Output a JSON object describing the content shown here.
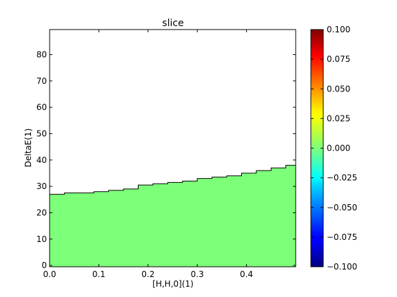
{
  "chart_data": {
    "type": "heatmap",
    "title": "slice",
    "xlabel": "[H,H,0](1)",
    "ylabel": "DeltaE(1)",
    "xlim": [
      0.0,
      0.5
    ],
    "ylim": [
      -0.5,
      89.5
    ],
    "x_ticks": [
      0.0,
      0.1,
      0.2,
      0.3,
      0.4
    ],
    "x_tick_labels": [
      "0.0",
      "0.1",
      "0.2",
      "0.3",
      "0.4"
    ],
    "y_ticks": [
      0,
      10,
      20,
      30,
      40,
      50,
      60,
      70,
      80
    ],
    "y_tick_labels": [
      "0",
      "10",
      "20",
      "30",
      "40",
      "50",
      "60",
      "70",
      "80"
    ],
    "colormap": "jet",
    "color_range": [
      -0.1,
      0.1
    ],
    "colorbar_ticks": [
      0.1,
      0.075,
      0.05,
      0.025,
      0.0,
      -0.025,
      -0.05,
      -0.075,
      -0.1
    ],
    "colorbar_tick_labels": [
      "0.100",
      "0.075",
      "0.050",
      "0.025",
      "0.000",
      "−0.025",
      "−0.050",
      "−0.075",
      "−0.100"
    ],
    "data_value": 0.0,
    "data_color": "#7dff7a",
    "boundary": {
      "x": [
        0.0,
        0.03,
        0.06,
        0.09,
        0.12,
        0.15,
        0.18,
        0.21,
        0.24,
        0.27,
        0.3,
        0.33,
        0.36,
        0.39,
        0.42,
        0.45,
        0.48,
        0.5
      ],
      "y": [
        27.0,
        27.5,
        27.5,
        28.0,
        28.5,
        29.0,
        30.5,
        31.0,
        31.5,
        32.0,
        33.0,
        33.5,
        34.0,
        35.0,
        36.0,
        37.0,
        38.0,
        38.0
      ]
    }
  }
}
